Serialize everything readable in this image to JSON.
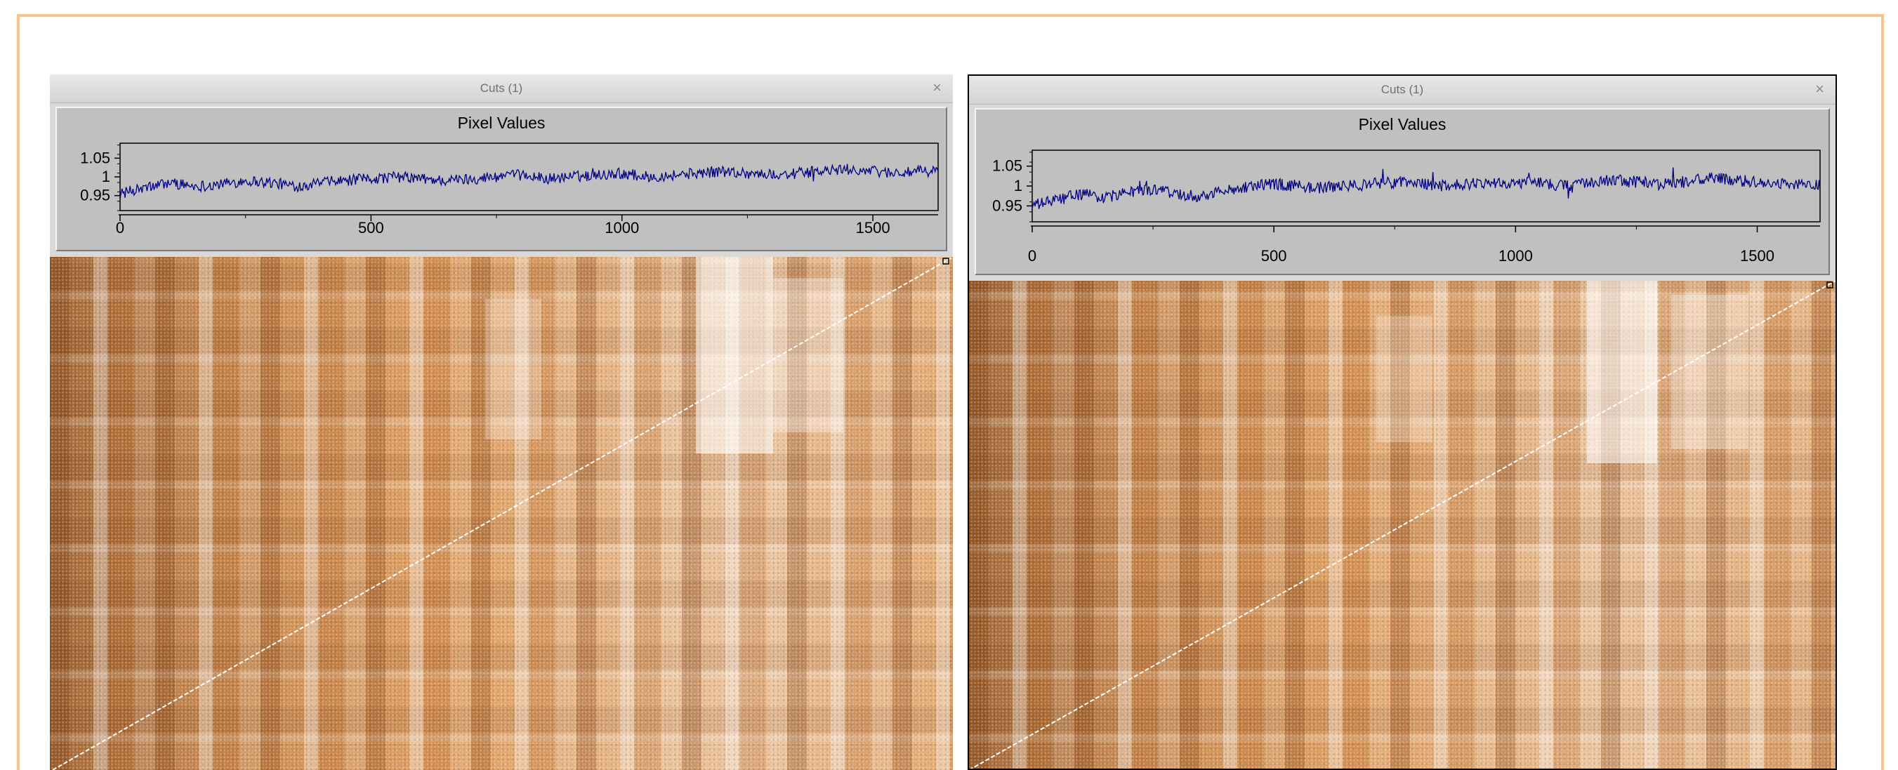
{
  "windows": [
    {
      "title": "Cuts (1)",
      "close_label": "×",
      "plot": {
        "title": "Pixel Values",
        "line_color": "#000080"
      }
    },
    {
      "title": "Cuts (1)",
      "close_label": "×",
      "plot": {
        "title": "Pixel Values",
        "line_color": "#000080"
      }
    }
  ],
  "image_colors": {
    "base": "#e0a062",
    "dark": "#5a2300",
    "light": "#ffffff"
  },
  "page_border_color": "#f6c48a",
  "chart_data": [
    {
      "type": "line",
      "title": "Pixel Values",
      "xlabel": "",
      "ylabel": "",
      "xlim": [
        0,
        1630
      ],
      "ylim": [
        0.91,
        1.09
      ],
      "x_ticks": [
        0,
        500,
        1000,
        1500
      ],
      "y_ticks": [
        0.95,
        1,
        1.05
      ],
      "x_tick_labels": [
        "0",
        "500",
        "1000",
        "1500"
      ],
      "y_tick_labels": [
        "0.95",
        "1",
        "1.05"
      ],
      "series": [
        {
          "x": [
            0,
            50,
            100,
            150,
            200,
            250,
            300,
            350,
            400,
            450,
            500,
            550,
            600,
            650,
            700,
            750,
            800,
            850,
            900,
            950,
            1000,
            1050,
            1100,
            1150,
            1200,
            1250,
            1300,
            1350,
            1400,
            1450,
            1500,
            1550,
            1600,
            1630
          ],
          "values": [
            0.955,
            0.97,
            0.985,
            0.975,
            0.98,
            0.99,
            0.985,
            0.975,
            0.985,
            0.99,
            0.995,
            1.0,
            0.995,
            0.99,
            0.995,
            1.0,
            1.005,
            0.995,
            1.0,
            1.005,
            1.01,
            1.0,
            1.005,
            1.01,
            1.015,
            1.01,
            1.005,
            1.01,
            1.015,
            1.02,
            1.015,
            1.01,
            1.015,
            1.015
          ]
        }
      ]
    },
    {
      "type": "line",
      "title": "Pixel Values",
      "xlabel": "",
      "ylabel": "",
      "xlim": [
        0,
        1630
      ],
      "ylim": [
        0.91,
        1.09
      ],
      "x_ticks": [
        0,
        500,
        1000,
        1500
      ],
      "y_ticks": [
        0.95,
        1,
        1.05
      ],
      "x_tick_labels": [
        "0",
        "500",
        "1000",
        "1500"
      ],
      "y_tick_labels": [
        "0.95",
        "1",
        "1.05"
      ],
      "series": [
        {
          "x": [
            0,
            50,
            100,
            150,
            200,
            250,
            300,
            350,
            400,
            450,
            500,
            550,
            600,
            650,
            700,
            750,
            800,
            850,
            900,
            950,
            1000,
            1050,
            1100,
            1150,
            1200,
            1250,
            1300,
            1350,
            1400,
            1450,
            1500,
            1550,
            1600,
            1630
          ],
          "values": [
            0.95,
            0.965,
            0.98,
            0.97,
            0.985,
            0.99,
            0.98,
            0.975,
            0.99,
            1.0,
            1.005,
            1.0,
            0.995,
            1.0,
            1.005,
            1.01,
            1.005,
            1.0,
            1.005,
            1.01,
            1.005,
            1.01,
            1.0,
            1.005,
            1.015,
            1.01,
            1.005,
            1.01,
            1.02,
            1.015,
            1.01,
            1.005,
            1.005,
            1.0
          ]
        }
      ]
    }
  ]
}
